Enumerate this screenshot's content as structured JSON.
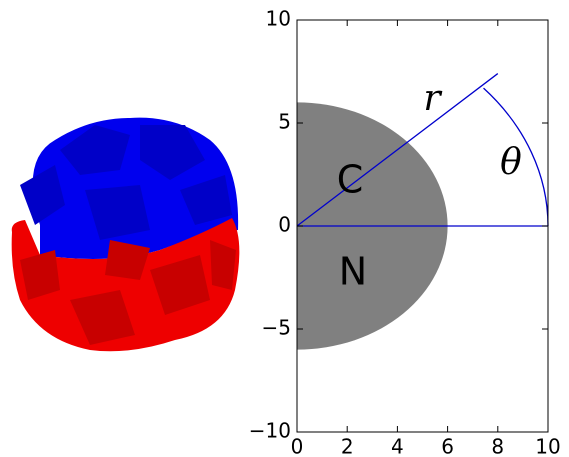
{
  "chart_data": {
    "type": "polar-diagram",
    "xlim": [
      0,
      10
    ],
    "ylim": [
      -10,
      10
    ],
    "xticks": [
      0,
      2,
      4,
      6,
      8,
      10
    ],
    "yticks": [
      {
        "value": -10,
        "label": "−10"
      },
      {
        "value": -5,
        "label": "−5"
      },
      0,
      5,
      10
    ],
    "half_disk": {
      "radius": 6,
      "color": "#808080"
    },
    "ray": {
      "x": [
        0,
        8
      ],
      "y": [
        0,
        7.4
      ],
      "color": "#0000cc"
    },
    "baseline": {
      "x": [
        0,
        10
      ],
      "y": [
        0,
        0
      ],
      "color": "#0000cc"
    },
    "arc": {
      "radius": 10,
      "angle": 42,
      "color": "#0000cc"
    },
    "annotations": [
      "C",
      "N",
      "r",
      "θ"
    ]
  }
}
